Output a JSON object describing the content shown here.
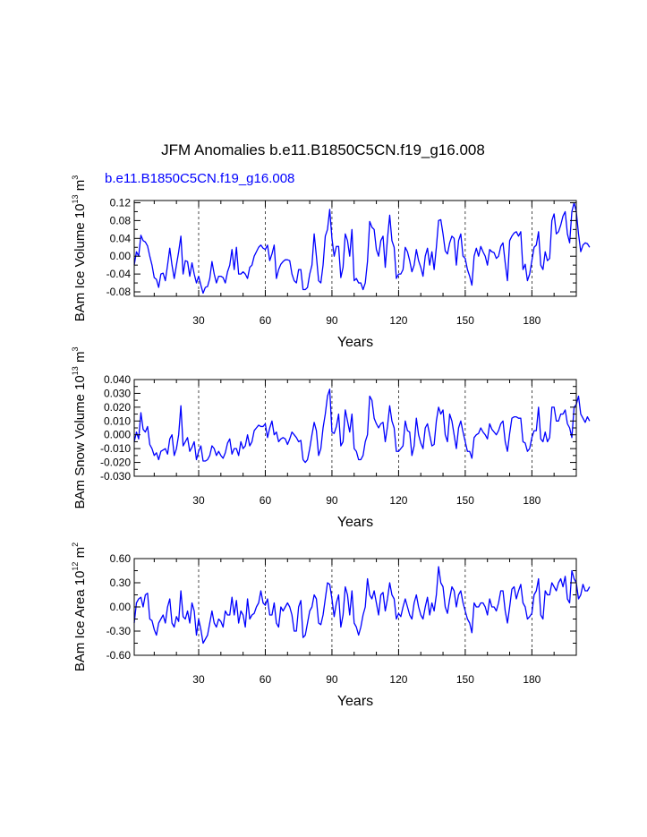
{
  "chart_data": {
    "title": "JFM Anomalies b.e11.B1850C5CN.f19_g16.008",
    "series_label": "b.e11.B1850C5CN.f19_g16.008",
    "line_color": "#0000ff",
    "panels": [
      {
        "type": "line",
        "ylabel_base": "BAm Ice Volume 10",
        "ylabel_exp": "13",
        "ylabel_unit": " m",
        "ylabel_unit_exp": "3",
        "xlabel": "Years",
        "xlim": [
          1,
          200
        ],
        "ylim": [
          -0.09,
          0.125
        ],
        "yticks": [
          0.12,
          0.08,
          0.04,
          0.0,
          -0.04,
          -0.08
        ],
        "ytick_labels": [
          "0.12",
          "0.08",
          "0.04",
          "0.00",
          "-0.04",
          "-0.08"
        ],
        "xticks": [
          30,
          60,
          90,
          120,
          150,
          180
        ],
        "xtick_labels": [
          "30",
          "60",
          "90",
          "120",
          "150",
          "180"
        ],
        "grid_x": true,
        "values": [
          -0.02,
          0.01,
          0.0,
          0.047,
          0.035,
          0.032,
          0.023,
          0.0,
          -0.02,
          -0.048,
          -0.052,
          -0.07,
          -0.04,
          -0.038,
          -0.055,
          -0.02,
          0.018,
          -0.02,
          -0.05,
          -0.02,
          0.01,
          0.045,
          -0.04,
          -0.01,
          -0.012,
          -0.045,
          -0.015,
          -0.04,
          -0.06,
          -0.045,
          -0.065,
          -0.083,
          -0.07,
          -0.068,
          -0.05,
          -0.012,
          -0.04,
          -0.06,
          -0.045,
          -0.045,
          -0.048,
          -0.06,
          -0.035,
          -0.02,
          0.015,
          -0.03,
          0.02,
          -0.04,
          -0.04,
          -0.035,
          -0.04,
          -0.05,
          -0.025,
          -0.02,
          0.0,
          0.01,
          0.02,
          0.025,
          0.018,
          0.015,
          0.025,
          -0.01,
          0.005,
          0.025,
          -0.05,
          -0.03,
          -0.018,
          -0.012,
          -0.008,
          -0.008,
          -0.01,
          -0.04,
          -0.055,
          -0.06,
          -0.03,
          -0.03,
          -0.075,
          -0.075,
          -0.07,
          -0.04,
          -0.02,
          0.05,
          0.0,
          -0.055,
          -0.06,
          -0.02,
          0.045,
          0.06,
          0.105,
          0.04,
          0.0,
          0.022,
          0.022,
          -0.048,
          -0.025,
          0.05,
          0.035,
          0.0,
          0.06,
          -0.055,
          -0.05,
          -0.06,
          -0.06,
          -0.075,
          -0.06,
          -0.012,
          0.078,
          0.065,
          0.06,
          0.015,
          0.0,
          0.035,
          0.045,
          -0.025,
          0.04,
          0.092,
          0.035,
          0.02,
          -0.05,
          -0.04,
          -0.04,
          -0.03,
          0.02,
          0.01,
          -0.01,
          -0.035,
          -0.02,
          0.015,
          -0.01,
          -0.025,
          -0.045,
          0.0,
          0.018,
          -0.02,
          0.01,
          -0.03,
          0.02,
          0.08,
          0.082,
          0.05,
          0.012,
          0.005,
          0.03,
          0.045,
          0.04,
          -0.02,
          0.035,
          0.05,
          0.0,
          -0.005,
          -0.03,
          -0.045,
          -0.065,
          0.0,
          0.018,
          0.0,
          0.022,
          0.01,
          0.0,
          -0.02,
          0.015,
          0.01,
          0.008,
          -0.005,
          0.0,
          0.022,
          0.03,
          -0.015,
          -0.055,
          0.035,
          0.045,
          0.052,
          0.055,
          0.045,
          0.055,
          -0.03,
          -0.018,
          -0.055,
          -0.04,
          -0.01,
          0.02,
          0.025,
          0.055,
          -0.02,
          -0.03,
          0.01,
          -0.01,
          -0.005,
          0.08,
          0.095,
          0.05,
          0.055,
          0.07,
          0.09,
          0.1,
          0.05,
          0.03,
          0.1,
          0.12,
          0.1,
          0.05,
          0.01,
          0.025,
          0.03,
          0.028,
          0.02
        ]
      },
      {
        "type": "line",
        "ylabel_base": "BAm Snow Volume 10",
        "ylabel_exp": "13",
        "ylabel_unit": " m",
        "ylabel_unit_exp": "3",
        "xlabel": "Years",
        "xlim": [
          1,
          200
        ],
        "ylim": [
          -0.03,
          0.04
        ],
        "yticks": [
          0.04,
          0.03,
          0.02,
          0.01,
          0.0,
          -0.01,
          -0.02,
          -0.03
        ],
        "ytick_labels": [
          "0.040",
          "0.030",
          "0.020",
          "0.010",
          "0.000",
          "-0.010",
          "-0.020",
          "-0.030"
        ],
        "xticks": [
          30,
          60,
          90,
          120,
          150,
          180
        ],
        "xtick_labels": [
          "30",
          "60",
          "90",
          "120",
          "150",
          "180"
        ],
        "grid_x": true,
        "values": [
          -0.005,
          0.002,
          -0.003,
          0.016,
          0.004,
          0.002,
          0.006,
          -0.007,
          -0.01,
          -0.015,
          -0.013,
          -0.018,
          -0.012,
          -0.011,
          -0.01,
          -0.014,
          -0.003,
          0.0,
          -0.015,
          -0.01,
          0.0,
          0.021,
          -0.008,
          -0.005,
          -0.002,
          -0.012,
          -0.009,
          -0.005,
          -0.018,
          -0.012,
          -0.008,
          -0.019,
          -0.019,
          -0.018,
          -0.015,
          -0.008,
          -0.01,
          -0.015,
          -0.012,
          -0.015,
          -0.017,
          -0.013,
          -0.006,
          -0.003,
          -0.014,
          -0.01,
          -0.01,
          -0.015,
          -0.005,
          -0.01,
          -0.008,
          0.0,
          -0.008,
          -0.005,
          0.003,
          0.005,
          0.007,
          0.006,
          0.006,
          0.008,
          -0.002,
          0.005,
          0.01,
          0.0,
          0.002,
          -0.005,
          -0.003,
          -0.002,
          -0.003,
          -0.007,
          -0.003,
          0.002,
          0.0,
          -0.002,
          -0.005,
          -0.004,
          -0.018,
          -0.02,
          -0.018,
          -0.01,
          0.0,
          0.009,
          0.003,
          -0.015,
          -0.01,
          0.005,
          0.015,
          0.028,
          0.033,
          0.002,
          0.001,
          0.006,
          0.015,
          -0.008,
          -0.005,
          0.018,
          0.01,
          0.002,
          0.015,
          -0.01,
          -0.012,
          -0.018,
          -0.018,
          -0.015,
          -0.005,
          0.0,
          0.028,
          0.025,
          0.012,
          0.008,
          0.005,
          0.008,
          0.009,
          -0.005,
          0.006,
          0.021,
          0.01,
          0.005,
          -0.012,
          -0.012,
          -0.01,
          -0.008,
          0.01,
          0.003,
          0.002,
          -0.015,
          -0.008,
          0.012,
          0.0,
          -0.006,
          -0.01,
          0.005,
          0.008,
          0.0,
          -0.008,
          -0.007,
          0.01,
          0.02,
          0.015,
          0.018,
          0.0,
          -0.005,
          0.015,
          0.01,
          0.0,
          -0.01,
          0.005,
          0.01,
          0.002,
          -0.005,
          -0.012,
          -0.012,
          -0.017,
          -0.002,
          0.0,
          0.001,
          0.005,
          0.002,
          0.0,
          -0.003,
          0.008,
          0.004,
          0.002,
          0.0,
          0.003,
          0.008,
          0.01,
          -0.005,
          -0.012,
          0.001,
          0.012,
          0.013,
          0.013,
          0.012,
          0.012,
          -0.005,
          -0.006,
          -0.012,
          -0.01,
          -0.002,
          0.003,
          0.003,
          0.02,
          -0.003,
          -0.005,
          0.002,
          -0.005,
          -0.002,
          0.02,
          0.02,
          0.01,
          0.01,
          0.015,
          0.015,
          0.018,
          0.008,
          0.005,
          -0.002,
          0.02,
          0.022,
          0.028,
          0.015,
          0.012,
          0.009,
          0.013,
          0.01
        ]
      },
      {
        "type": "line",
        "ylabel_base": "BAm Ice Area 10",
        "ylabel_exp": "12",
        "ylabel_unit": " m",
        "ylabel_unit_exp": "2",
        "xlabel": "Years",
        "xlim": [
          1,
          200
        ],
        "ylim": [
          -0.6,
          0.6
        ],
        "yticks": [
          0.6,
          0.3,
          0.0,
          -0.3,
          -0.6
        ],
        "ytick_labels": [
          "0.60",
          "0.30",
          "0.00",
          "-0.30",
          "-0.60"
        ],
        "xticks": [
          30,
          60,
          90,
          120,
          150,
          180
        ],
        "xtick_labels": [
          "30",
          "60",
          "90",
          "120",
          "150",
          "180"
        ],
        "grid_x": true,
        "values": [
          -0.2,
          0.05,
          0.1,
          0.12,
          0.0,
          0.15,
          0.17,
          -0.15,
          -0.17,
          -0.28,
          -0.35,
          -0.2,
          -0.15,
          -0.1,
          -0.2,
          0.0,
          0.1,
          -0.2,
          -0.25,
          -0.12,
          -0.18,
          0.2,
          -0.12,
          -0.15,
          -0.05,
          -0.2,
          0.05,
          -0.05,
          -0.35,
          -0.15,
          -0.28,
          -0.45,
          -0.4,
          -0.35,
          -0.2,
          -0.05,
          -0.2,
          -0.25,
          -0.15,
          -0.18,
          -0.25,
          -0.05,
          -0.1,
          -0.1,
          0.12,
          -0.1,
          0.08,
          -0.2,
          -0.05,
          -0.1,
          -0.25,
          0.1,
          -0.15,
          -0.1,
          -0.08,
          0.0,
          0.05,
          0.2,
          0.05,
          0.02,
          0.1,
          -0.1,
          -0.1,
          0.05,
          -0.2,
          -0.25,
          0.0,
          -0.05,
          0.0,
          0.05,
          0.0,
          -0.1,
          -0.3,
          -0.3,
          0.0,
          0.08,
          -0.38,
          -0.35,
          -0.2,
          -0.05,
          0.0,
          0.15,
          0.1,
          -0.2,
          -0.22,
          -0.1,
          0.1,
          0.3,
          0.28,
          0.1,
          -0.12,
          0.05,
          0.15,
          -0.25,
          -0.1,
          0.25,
          0.15,
          -0.1,
          0.2,
          -0.2,
          -0.25,
          -0.35,
          -0.25,
          -0.1,
          0.0,
          0.35,
          0.15,
          0.1,
          0.2,
          0.05,
          -0.1,
          0.15,
          0.18,
          -0.05,
          0.1,
          0.3,
          0.15,
          0.1,
          -0.15,
          -0.08,
          -0.12,
          0.0,
          0.1,
          0.0,
          -0.1,
          -0.15,
          0.05,
          0.15,
          0.0,
          -0.1,
          -0.15,
          0.0,
          0.12,
          -0.1,
          0.05,
          -0.05,
          0.15,
          0.5,
          0.3,
          0.25,
          0.0,
          -0.08,
          0.1,
          0.25,
          0.2,
          0.0,
          0.15,
          0.2,
          0.05,
          -0.05,
          -0.15,
          -0.2,
          -0.32,
          0.05,
          0.0,
          0.0,
          0.05,
          0.05,
          0.0,
          -0.1,
          0.1,
          0.0,
          0.0,
          -0.05,
          0.05,
          0.2,
          0.2,
          -0.05,
          -0.2,
          0.0,
          0.22,
          0.25,
          0.1,
          0.2,
          0.28,
          0.05,
          0.0,
          -0.15,
          -0.12,
          -0.08,
          0.15,
          0.2,
          0.35,
          -0.1,
          -0.15,
          0.2,
          0.15,
          0.15,
          0.3,
          0.25,
          0.2,
          0.3,
          0.35,
          0.25,
          0.38,
          0.1,
          0.05,
          0.45,
          0.35,
          0.3,
          0.1,
          0.15,
          0.28,
          0.2,
          0.2,
          0.25
        ]
      }
    ]
  }
}
